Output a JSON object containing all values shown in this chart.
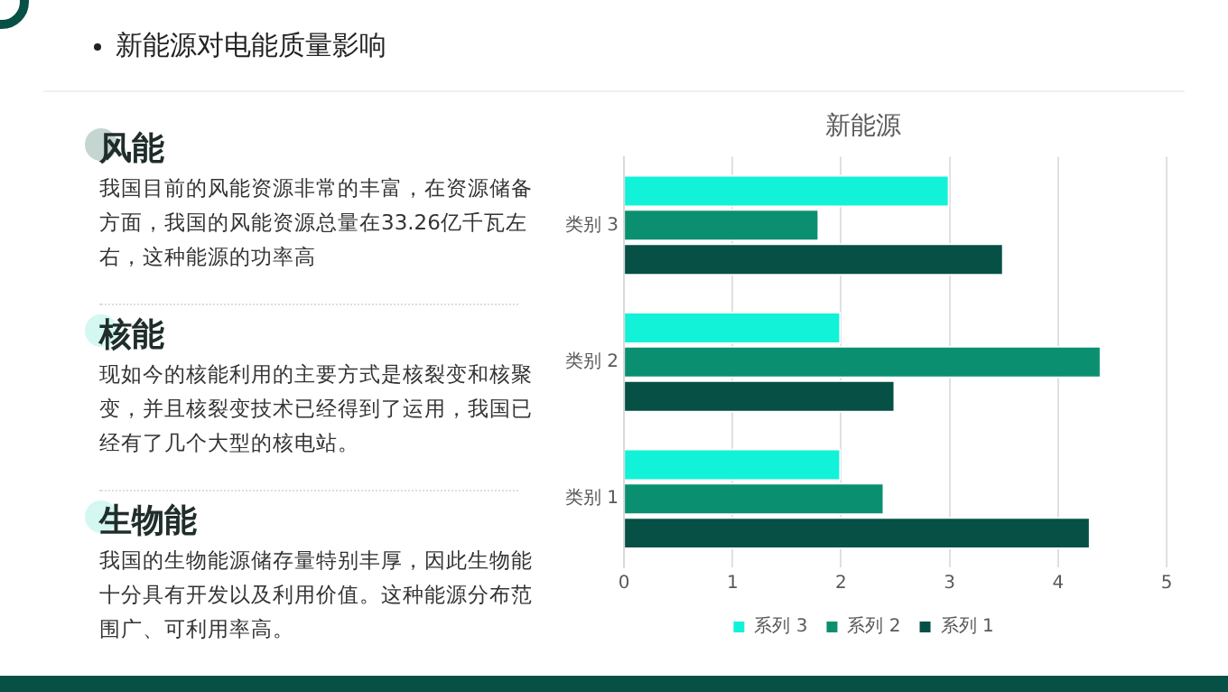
{
  "chart_data": {
    "type": "bar",
    "orientation": "horizontal",
    "title": "新能源",
    "categories": [
      "类别 3",
      "类别 2",
      "类别 1"
    ],
    "series": [
      {
        "name": "系列 3",
        "color": "#12f2d8",
        "values": [
          3,
          2,
          2
        ]
      },
      {
        "name": "系列 2",
        "color": "#0a9070",
        "values": [
          1.8,
          4.4,
          2.4
        ]
      },
      {
        "name": "系列 1",
        "color": "#065045",
        "values": [
          3.5,
          2.5,
          4.3
        ]
      }
    ],
    "xlim": [
      0,
      5
    ],
    "xticks": [
      0,
      1,
      2,
      3,
      4,
      5
    ],
    "grid": "x",
    "legend": "bottom",
    "annotations": [
      "新能源对电能质量影响",
      "风能",
      "我国目前的风能资源非常的丰富，在资源储备方面，我国的风能资源总量在33.26亿千瓦左右，这种能源的功率高",
      "核能",
      "现如今的核能利用的主要方式是核裂变和核聚变，并且核裂变技术已经得到了运用，我国已经有了几个大型的核电站。",
      "生物能",
      "我国的生物能源储存量特别丰厚，因此生物能十分具有开发以及利用价值。这种能源分布范围广、可利用率高。"
    ]
  }
}
